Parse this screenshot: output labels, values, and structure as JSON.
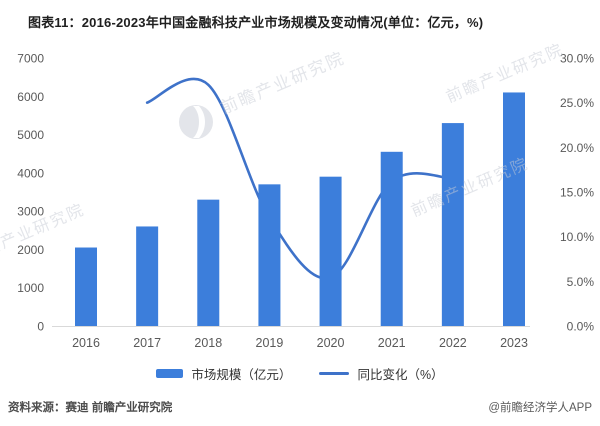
{
  "title": "图表11：2016-2023年中国金融科技产业市场规模及变动情况(单位：亿元，%)",
  "source": "资料来源：赛迪 前瞻产业研究院",
  "credit": "@前瞻经济学人APP",
  "watermark": {
    "text": "前瞻产业研究院"
  },
  "colors": {
    "bar": "#3C7EDB",
    "line": "#3E72C9",
    "axis_text": "#595959",
    "axis_line": "#D9D9D9",
    "title_text": "#1F1F1F",
    "legend_text": "#333333",
    "watermark": "#C6CBD4"
  },
  "legend": [
    {
      "label": "市场规模（亿元）",
      "type": "bar"
    },
    {
      "label": "同比变化（%）",
      "type": "line"
    }
  ],
  "chart_data": {
    "type": "bar+line",
    "title": "图表11：2016-2023年中国金融科技产业市场规模及变动情况(单位：亿元，%)",
    "categories": [
      "2016",
      "2017",
      "2018",
      "2019",
      "2020",
      "2021",
      "2022",
      "2023"
    ],
    "series": [
      {
        "name": "市场规模（亿元）",
        "type": "bar",
        "axis": "left",
        "values": [
          2050,
          2600,
          3300,
          3700,
          3900,
          4550,
          5300,
          6100
        ]
      },
      {
        "name": "同比变化（%）",
        "type": "line",
        "axis": "right",
        "x": [
          "2017",
          "2018",
          "2019",
          "2020",
          "2021",
          "2022"
        ],
        "values": [
          25.0,
          27.0,
          12.1,
          5.4,
          16.2,
          16.5
        ]
      }
    ],
    "left_axis": {
      "label": "",
      "min": 0,
      "max": 7000,
      "step": 1000,
      "ticks": [
        "0",
        "1000",
        "2000",
        "3000",
        "4000",
        "5000",
        "6000",
        "7000"
      ]
    },
    "right_axis": {
      "label": "",
      "min": 0,
      "max": 30,
      "step": 5,
      "ticks": [
        "0.0%",
        "5.0%",
        "10.0%",
        "15.0%",
        "20.0%",
        "25.0%",
        "30.0%"
      ]
    },
    "grid": false,
    "legend_position": "bottom"
  }
}
